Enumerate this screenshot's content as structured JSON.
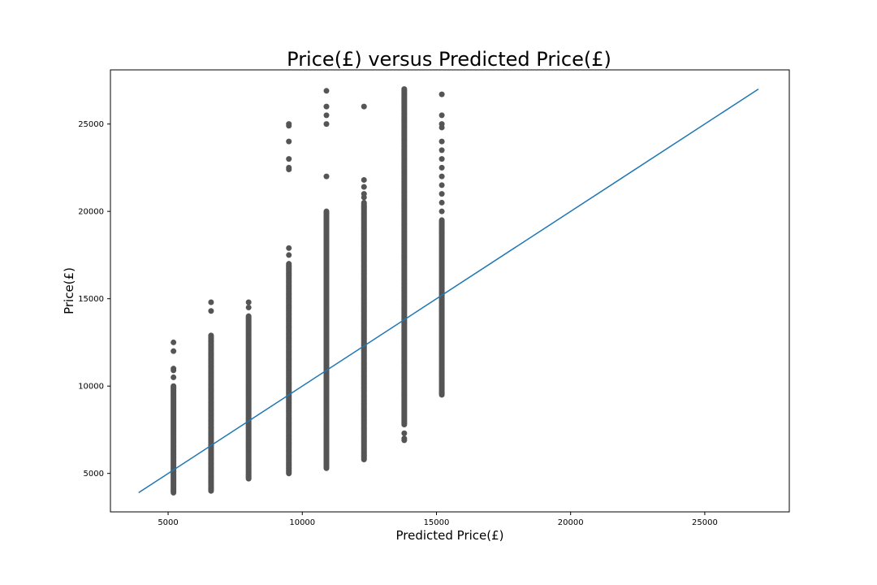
{
  "chart_data": {
    "type": "scatter",
    "title": "Price(£) versus Predicted Price(£)",
    "xlabel": "Predicted Price(£)",
    "ylabel": "Price(£)",
    "xlim": [
      2850,
      28150
    ],
    "ylim": [
      2800,
      28100
    ],
    "x_ticks": [
      5000,
      10000,
      15000,
      20000,
      25000
    ],
    "y_ticks": [
      5000,
      10000,
      15000,
      20000,
      25000
    ],
    "grid": false,
    "colors": {
      "points": "#555555",
      "line": "#1f77b4",
      "frame": "#000000"
    },
    "series": [
      {
        "type": "scatter",
        "columns": [
          {
            "x": 5200,
            "dense_range": [
              3900,
              10000
            ],
            "outliers": [
              10500,
              10900,
              11000,
              12000,
              12500
            ]
          },
          {
            "x": 6600,
            "dense_range": [
              4000,
              12900
            ],
            "outliers": [
              14300,
              14800
            ]
          },
          {
            "x": 8000,
            "dense_range": [
              4700,
              14000
            ],
            "outliers": [
              14500,
              14800
            ]
          },
          {
            "x": 9500,
            "dense_range": [
              5000,
              17000
            ],
            "outliers": [
              17500,
              17900,
              22400,
              22500,
              23000,
              24000,
              24900,
              25000
            ]
          },
          {
            "x": 10900,
            "dense_range": [
              5300,
              20000
            ],
            "outliers": [
              22000,
              25000,
              25500,
              26000,
              26900
            ]
          },
          {
            "x": 12300,
            "dense_range": [
              5800,
              20500
            ],
            "outliers": [
              20800,
              21000,
              21400,
              21800,
              26000
            ]
          },
          {
            "x": 13800,
            "dense_range": [
              7800,
              27000
            ],
            "outliers": [
              6900,
              7000,
              7300
            ]
          },
          {
            "x": 15200,
            "dense_range": [
              9500,
              19500
            ],
            "outliers": [
              20000,
              20500,
              21000,
              21500,
              22000,
              22500,
              23000,
              23500,
              24000,
              24800,
              25000,
              25500,
              26700
            ]
          }
        ]
      },
      {
        "type": "line",
        "points": [
          [
            3900,
            3900
          ],
          [
            27000,
            27000
          ]
        ]
      }
    ]
  }
}
